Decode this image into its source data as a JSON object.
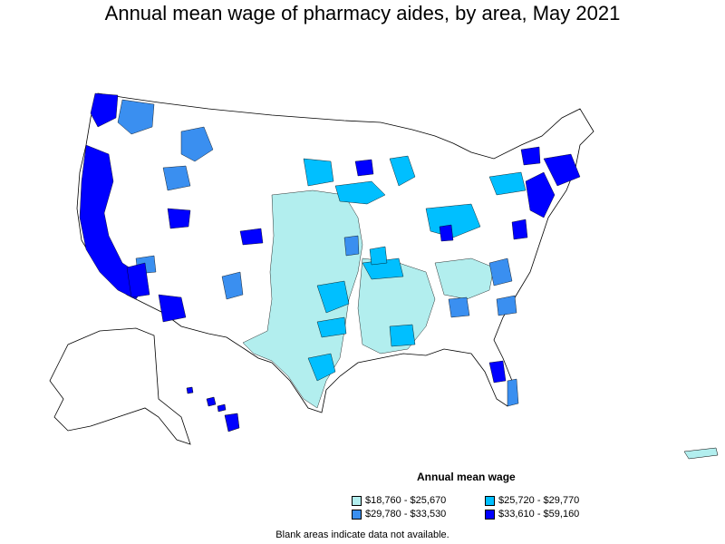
{
  "title": "Annual mean wage of pharmacy aides, by area, May 2021",
  "legend": {
    "title": "Annual mean wage",
    "items": [
      {
        "label": "$18,760 - $25,670",
        "color": "#b2eeee"
      },
      {
        "label": "$25,720 - $29,770",
        "color": "#00bfff"
      },
      {
        "label": "$29,780 - $33,530",
        "color": "#3a8ff0"
      },
      {
        "label": "$33,610 - $59,160",
        "color": "#0000ff"
      }
    ]
  },
  "note": "Blank areas indicate data not available.",
  "colors": {
    "outline": "#000000",
    "blank": "#ffffff"
  }
}
